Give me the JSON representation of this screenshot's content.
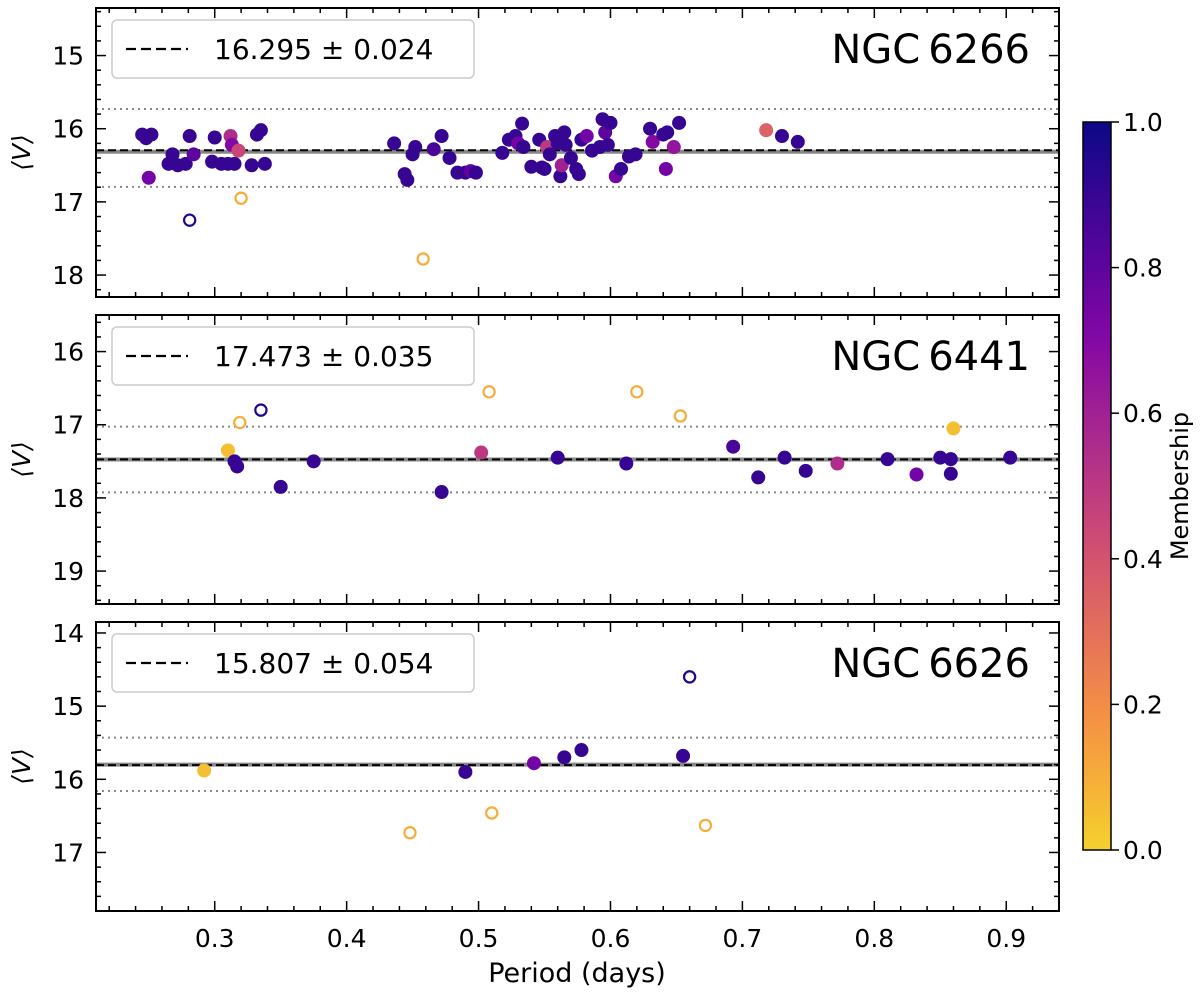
{
  "chart_data": {
    "type": "scatter",
    "xlabel": "Period (days)",
    "xlim": [
      0.21,
      0.94
    ],
    "xticks": [
      0.3,
      0.4,
      0.5,
      0.6,
      0.7,
      0.8,
      0.9
    ],
    "xtick_labels": [
      "0.3",
      "0.4",
      "0.5",
      "0.6",
      "0.7",
      "0.8",
      "0.9"
    ],
    "colorbar": {
      "label": "Membership",
      "colormap": "plasma",
      "range": [
        0,
        1
      ],
      "ticks": [
        0.0,
        0.2,
        0.4,
        0.6,
        0.8,
        1.0
      ],
      "tick_labels": [
        "0.0",
        "0.2",
        "0.4",
        "0.6",
        "0.8",
        "1.0"
      ]
    },
    "panels": [
      {
        "cluster": "NGC 6266",
        "ylabel": "⟨V⟩",
        "ylim": [
          18.3,
          14.35
        ],
        "yticks": [
          15,
          16,
          17,
          18
        ],
        "ytick_labels": [
          "15",
          "16",
          "17",
          "18"
        ],
        "mean_v": 16.295,
        "mean_err": 0.024,
        "legend_text": "16.295 ± 0.024",
        "band_lines": [
          15.73,
          16.315,
          16.795
        ],
        "points": [
          [
            0.245,
            16.08,
            0.9,
            1
          ],
          [
            0.248,
            16.13,
            0.9,
            1
          ],
          [
            0.252,
            16.08,
            0.9,
            1
          ],
          [
            0.25,
            16.67,
            0.75,
            1
          ],
          [
            0.265,
            16.48,
            0.9,
            1
          ],
          [
            0.268,
            16.35,
            0.9,
            1
          ],
          [
            0.272,
            16.5,
            0.9,
            1
          ],
          [
            0.278,
            16.48,
            0.9,
            1
          ],
          [
            0.281,
            16.1,
            0.9,
            1
          ],
          [
            0.284,
            16.35,
            0.8,
            1
          ],
          [
            0.281,
            17.25,
            0.95,
            0
          ],
          [
            0.298,
            16.45,
            0.9,
            1
          ],
          [
            0.3,
            16.12,
            0.9,
            1
          ],
          [
            0.305,
            16.48,
            0.9,
            1
          ],
          [
            0.31,
            16.48,
            0.9,
            1
          ],
          [
            0.312,
            16.1,
            0.55,
            1
          ],
          [
            0.313,
            16.22,
            0.7,
            1
          ],
          [
            0.315,
            16.48,
            0.9,
            1
          ],
          [
            0.318,
            16.3,
            0.45,
            1
          ],
          [
            0.32,
            16.95,
            0.1,
            0
          ],
          [
            0.328,
            16.5,
            0.9,
            1
          ],
          [
            0.332,
            16.08,
            0.9,
            1
          ],
          [
            0.335,
            16.02,
            0.9,
            1
          ],
          [
            0.338,
            16.48,
            0.9,
            1
          ],
          [
            0.436,
            16.2,
            0.9,
            1
          ],
          [
            0.444,
            16.62,
            0.9,
            1
          ],
          [
            0.446,
            16.7,
            0.9,
            1
          ],
          [
            0.45,
            16.35,
            0.9,
            1
          ],
          [
            0.452,
            16.25,
            0.9,
            1
          ],
          [
            0.458,
            17.78,
            0.1,
            0
          ],
          [
            0.466,
            16.28,
            0.85,
            1
          ],
          [
            0.472,
            16.1,
            0.9,
            1
          ],
          [
            0.478,
            16.4,
            0.9,
            1
          ],
          [
            0.484,
            16.6,
            0.9,
            1
          ],
          [
            0.49,
            16.6,
            0.9,
            1
          ],
          [
            0.494,
            16.58,
            0.8,
            1
          ],
          [
            0.498,
            16.6,
            0.9,
            1
          ],
          [
            0.518,
            16.33,
            0.9,
            1
          ],
          [
            0.523,
            16.15,
            0.9,
            1
          ],
          [
            0.528,
            16.1,
            0.9,
            1
          ],
          [
            0.53,
            16.2,
            0.75,
            1
          ],
          [
            0.533,
            15.93,
            0.9,
            1
          ],
          [
            0.534,
            16.25,
            0.9,
            1
          ],
          [
            0.54,
            16.52,
            0.9,
            1
          ],
          [
            0.546,
            16.15,
            0.9,
            1
          ],
          [
            0.548,
            16.53,
            0.9,
            1
          ],
          [
            0.55,
            16.55,
            0.9,
            1
          ],
          [
            0.552,
            16.25,
            0.5,
            1
          ],
          [
            0.554,
            16.35,
            0.9,
            1
          ],
          [
            0.558,
            16.1,
            0.9,
            1
          ],
          [
            0.56,
            16.2,
            0.9,
            1
          ],
          [
            0.562,
            16.65,
            0.9,
            1
          ],
          [
            0.563,
            16.5,
            0.6,
            1
          ],
          [
            0.565,
            16.05,
            0.9,
            1
          ],
          [
            0.566,
            16.22,
            0.9,
            1
          ],
          [
            0.57,
            16.4,
            0.9,
            1
          ],
          [
            0.574,
            16.55,
            0.9,
            1
          ],
          [
            0.576,
            16.62,
            0.9,
            1
          ],
          [
            0.578,
            16.15,
            0.9,
            1
          ],
          [
            0.582,
            16.1,
            0.75,
            1
          ],
          [
            0.586,
            16.3,
            0.9,
            1
          ],
          [
            0.592,
            16.25,
            0.9,
            1
          ],
          [
            0.594,
            15.87,
            0.9,
            1
          ],
          [
            0.596,
            16.05,
            0.8,
            1
          ],
          [
            0.598,
            16.22,
            0.9,
            1
          ],
          [
            0.6,
            15.92,
            0.9,
            1
          ],
          [
            0.604,
            16.65,
            0.75,
            1
          ],
          [
            0.608,
            16.55,
            0.9,
            1
          ],
          [
            0.614,
            16.38,
            0.9,
            1
          ],
          [
            0.619,
            16.35,
            0.9,
            1
          ],
          [
            0.63,
            16.0,
            0.9,
            1
          ],
          [
            0.632,
            16.18,
            0.7,
            1
          ],
          [
            0.64,
            16.08,
            0.9,
            1
          ],
          [
            0.643,
            16.05,
            0.9,
            1
          ],
          [
            0.642,
            16.55,
            0.75,
            1
          ],
          [
            0.648,
            16.25,
            0.65,
            1
          ],
          [
            0.652,
            15.92,
            0.9,
            1
          ],
          [
            0.718,
            16.02,
            0.35,
            1
          ],
          [
            0.73,
            16.1,
            0.9,
            1
          ],
          [
            0.742,
            16.18,
            0.9,
            1
          ]
        ]
      },
      {
        "cluster": "NGC 6441",
        "ylabel": "⟨V⟩",
        "ylim": [
          19.45,
          15.5
        ],
        "yticks": [
          16,
          17,
          18,
          19
        ],
        "ytick_labels": [
          "16",
          "17",
          "18",
          "19"
        ],
        "mean_v": 17.473,
        "mean_err": 0.035,
        "legend_text": "17.473 ± 0.035",
        "band_lines": [
          17.025,
          17.475,
          17.925
        ],
        "points": [
          [
            0.31,
            17.35,
            0.05,
            1
          ],
          [
            0.315,
            17.5,
            0.9,
            1
          ],
          [
            0.317,
            17.57,
            0.9,
            1
          ],
          [
            0.319,
            16.97,
            0.1,
            0
          ],
          [
            0.335,
            16.8,
            0.95,
            0
          ],
          [
            0.35,
            17.85,
            0.9,
            1
          ],
          [
            0.375,
            17.5,
            0.9,
            1
          ],
          [
            0.472,
            17.92,
            0.9,
            1
          ],
          [
            0.502,
            17.38,
            0.5,
            1
          ],
          [
            0.508,
            16.55,
            0.1,
            0
          ],
          [
            0.56,
            17.45,
            0.9,
            1
          ],
          [
            0.612,
            17.53,
            0.9,
            1
          ],
          [
            0.62,
            16.55,
            0.1,
            0
          ],
          [
            0.653,
            16.88,
            0.1,
            0
          ],
          [
            0.693,
            17.3,
            0.85,
            1
          ],
          [
            0.712,
            17.72,
            0.9,
            1
          ],
          [
            0.732,
            17.45,
            0.9,
            1
          ],
          [
            0.748,
            17.63,
            0.9,
            1
          ],
          [
            0.772,
            17.53,
            0.55,
            1
          ],
          [
            0.81,
            17.47,
            0.9,
            1
          ],
          [
            0.832,
            17.68,
            0.75,
            1
          ],
          [
            0.85,
            17.45,
            0.9,
            1
          ],
          [
            0.858,
            17.47,
            0.9,
            1
          ],
          [
            0.858,
            17.67,
            0.9,
            1
          ],
          [
            0.86,
            17.05,
            0.05,
            1
          ],
          [
            0.903,
            17.45,
            0.9,
            1
          ]
        ]
      },
      {
        "cluster": "NGC 6626",
        "ylabel": "⟨V⟩",
        "ylim": [
          17.8,
          13.85
        ],
        "yticks": [
          14,
          15,
          16,
          17
        ],
        "ytick_labels": [
          "14",
          "15",
          "16",
          "17"
        ],
        "mean_v": 15.807,
        "mean_err": 0.054,
        "legend_text": "15.807 ± 0.054",
        "band_lines": [
          15.43,
          15.8,
          16.16
        ],
        "points": [
          [
            0.292,
            15.88,
            0.05,
            1
          ],
          [
            0.448,
            16.73,
            0.1,
            0
          ],
          [
            0.49,
            15.9,
            0.9,
            1
          ],
          [
            0.51,
            16.46,
            0.1,
            0
          ],
          [
            0.542,
            15.78,
            0.75,
            1
          ],
          [
            0.565,
            15.7,
            0.9,
            1
          ],
          [
            0.578,
            15.6,
            0.9,
            1
          ],
          [
            0.655,
            15.68,
            0.9,
            1
          ],
          [
            0.66,
            14.6,
            0.95,
            0
          ],
          [
            0.672,
            16.63,
            0.1,
            0
          ]
        ]
      }
    ]
  }
}
